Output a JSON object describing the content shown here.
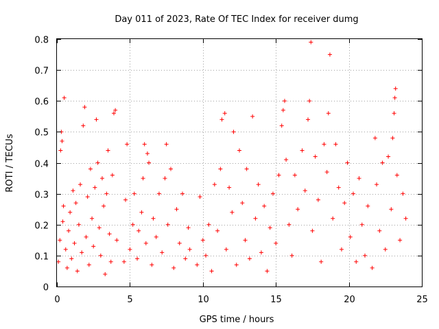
{
  "chart_data": {
    "type": "scatter",
    "title": "Day 011 of 2023, Rate Of TEC Index for receiver dumg",
    "xlabel": "GPS time / hours",
    "ylabel": "ROTI / TECUs",
    "xlim": [
      0,
      25
    ],
    "ylim": [
      0,
      0.8
    ],
    "xticks": [
      0,
      5,
      10,
      15,
      20,
      25
    ],
    "xtick_labels": [
      "0",
      "5",
      "10",
      "15",
      "20",
      "25"
    ],
    "yticks": [
      0,
      0.1,
      0.2,
      0.3,
      0.4,
      0.5,
      0.6,
      0.7,
      0.8
    ],
    "ytick_labels": [
      "0",
      "0.1",
      "0.2",
      "0.3",
      "0.4",
      "0.5",
      "0.6",
      "0.7",
      "0.8"
    ],
    "grid": true,
    "marker": "+",
    "color": "#ff0000",
    "series": [
      {
        "name": "ROTI",
        "points": [
          [
            0.1,
            0.08
          ],
          [
            0.2,
            0.15
          ],
          [
            0.25,
            0.44
          ],
          [
            0.3,
            0.5
          ],
          [
            0.35,
            0.47
          ],
          [
            0.4,
            0.21
          ],
          [
            0.45,
            0.26
          ],
          [
            0.5,
            0.61
          ],
          [
            0.6,
            0.12
          ],
          [
            0.7,
            0.06
          ],
          [
            0.8,
            0.18
          ],
          [
            0.9,
            0.24
          ],
          [
            1.0,
            0.09
          ],
          [
            1.1,
            0.31
          ],
          [
            1.2,
            0.14
          ],
          [
            1.3,
            0.27
          ],
          [
            1.4,
            0.05
          ],
          [
            1.5,
            0.2
          ],
          [
            1.6,
            0.33
          ],
          [
            1.7,
            0.11
          ],
          [
            1.8,
            0.52
          ],
          [
            1.9,
            0.58
          ],
          [
            2.0,
            0.16
          ],
          [
            2.1,
            0.29
          ],
          [
            2.2,
            0.07
          ],
          [
            2.3,
            0.38
          ],
          [
            2.4,
            0.22
          ],
          [
            2.5,
            0.13
          ],
          [
            2.6,
            0.32
          ],
          [
            2.7,
            0.54
          ],
          [
            2.8,
            0.4
          ],
          [
            2.9,
            0.19
          ],
          [
            3.0,
            0.1
          ],
          [
            3.1,
            0.35
          ],
          [
            3.2,
            0.26
          ],
          [
            3.3,
            0.04
          ],
          [
            3.4,
            0.3
          ],
          [
            3.5,
            0.44
          ],
          [
            3.6,
            0.17
          ],
          [
            3.7,
            0.08
          ],
          [
            3.8,
            0.36
          ],
          [
            3.9,
            0.56
          ],
          [
            4.0,
            0.57
          ],
          [
            4.1,
            0.15
          ],
          [
            4.6,
            0.08
          ],
          [
            4.7,
            0.28
          ],
          [
            4.8,
            0.46
          ],
          [
            5.0,
            0.12
          ],
          [
            5.2,
            0.2
          ],
          [
            5.3,
            0.3
          ],
          [
            5.5,
            0.09
          ],
          [
            5.6,
            0.18
          ],
          [
            5.8,
            0.24
          ],
          [
            5.9,
            0.35
          ],
          [
            6.0,
            0.46
          ],
          [
            6.1,
            0.14
          ],
          [
            6.2,
            0.43
          ],
          [
            6.3,
            0.4
          ],
          [
            6.5,
            0.07
          ],
          [
            6.6,
            0.22
          ],
          [
            6.8,
            0.16
          ],
          [
            7.0,
            0.3
          ],
          [
            7.2,
            0.11
          ],
          [
            7.4,
            0.35
          ],
          [
            7.5,
            0.46
          ],
          [
            7.6,
            0.2
          ],
          [
            7.8,
            0.38
          ],
          [
            8.0,
            0.06
          ],
          [
            8.2,
            0.25
          ],
          [
            8.4,
            0.14
          ],
          [
            8.6,
            0.3
          ],
          [
            8.8,
            0.09
          ],
          [
            9.0,
            0.19
          ],
          [
            9.1,
            0.12
          ],
          [
            9.6,
            0.07
          ],
          [
            9.8,
            0.29
          ],
          [
            10.0,
            0.15
          ],
          [
            10.2,
            0.1
          ],
          [
            10.4,
            0.2
          ],
          [
            10.6,
            0.05
          ],
          [
            10.8,
            0.33
          ],
          [
            11.0,
            0.18
          ],
          [
            11.2,
            0.38
          ],
          [
            11.3,
            0.54
          ],
          [
            11.5,
            0.56
          ],
          [
            11.6,
            0.12
          ],
          [
            11.8,
            0.32
          ],
          [
            12.0,
            0.24
          ],
          [
            12.1,
            0.5
          ],
          [
            12.3,
            0.07
          ],
          [
            12.5,
            0.44
          ],
          [
            12.7,
            0.27
          ],
          [
            12.9,
            0.15
          ],
          [
            13.0,
            0.38
          ],
          [
            13.2,
            0.09
          ],
          [
            13.4,
            0.55
          ],
          [
            13.6,
            0.22
          ],
          [
            13.8,
            0.33
          ],
          [
            14.0,
            0.11
          ],
          [
            14.2,
            0.26
          ],
          [
            14.4,
            0.05
          ],
          [
            14.6,
            0.19
          ],
          [
            14.8,
            0.3
          ],
          [
            15.0,
            0.14
          ],
          [
            15.2,
            0.36
          ],
          [
            15.4,
            0.52
          ],
          [
            15.5,
            0.57
          ],
          [
            15.6,
            0.6
          ],
          [
            15.7,
            0.41
          ],
          [
            15.9,
            0.2
          ],
          [
            16.1,
            0.1
          ],
          [
            16.3,
            0.36
          ],
          [
            16.5,
            0.25
          ],
          [
            16.8,
            0.44
          ],
          [
            17.0,
            0.31
          ],
          [
            17.2,
            0.54
          ],
          [
            17.3,
            0.6
          ],
          [
            17.4,
            0.79
          ],
          [
            17.5,
            0.18
          ],
          [
            17.7,
            0.42
          ],
          [
            17.9,
            0.28
          ],
          [
            18.1,
            0.08
          ],
          [
            18.3,
            0.46
          ],
          [
            18.5,
            0.37
          ],
          [
            18.6,
            0.56
          ],
          [
            18.7,
            0.75
          ],
          [
            18.9,
            0.22
          ],
          [
            19.1,
            0.46
          ],
          [
            19.3,
            0.32
          ],
          [
            19.5,
            0.12
          ],
          [
            19.7,
            0.27
          ],
          [
            19.9,
            0.4
          ],
          [
            20.1,
            0.16
          ],
          [
            20.3,
            0.3
          ],
          [
            20.5,
            0.08
          ],
          [
            20.7,
            0.35
          ],
          [
            20.9,
            0.2
          ],
          [
            21.1,
            0.1
          ],
          [
            21.3,
            0.26
          ],
          [
            21.6,
            0.06
          ],
          [
            21.8,
            0.48
          ],
          [
            21.9,
            0.33
          ],
          [
            22.1,
            0.18
          ],
          [
            22.3,
            0.4
          ],
          [
            22.5,
            0.12
          ],
          [
            22.7,
            0.42
          ],
          [
            22.9,
            0.25
          ],
          [
            23.0,
            0.48
          ],
          [
            23.1,
            0.56
          ],
          [
            23.15,
            0.61
          ],
          [
            23.2,
            0.64
          ],
          [
            23.3,
            0.36
          ],
          [
            23.5,
            0.15
          ],
          [
            23.7,
            0.3
          ],
          [
            23.9,
            0.22
          ]
        ]
      }
    ]
  }
}
